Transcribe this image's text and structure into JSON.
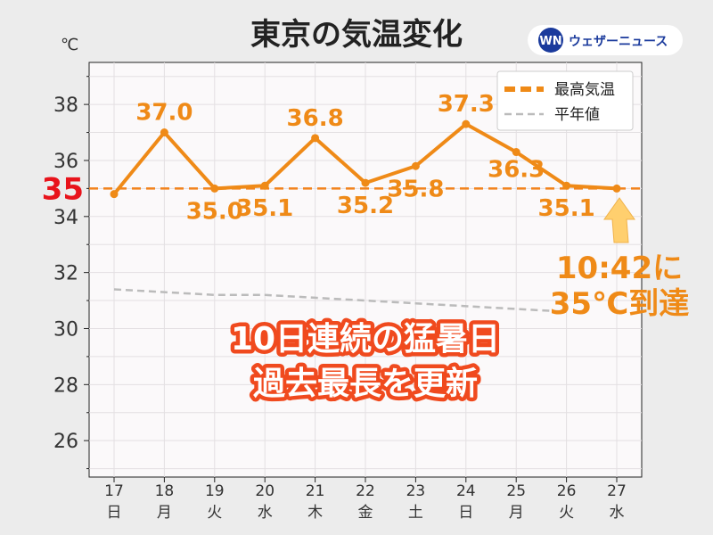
{
  "chart_data": {
    "type": "line",
    "title": "東京の気温変化",
    "yunit": "℃",
    "ylim": [
      24.7,
      39.5
    ],
    "yticks": [
      26,
      28,
      30,
      32,
      34,
      36,
      38
    ],
    "categories": [
      "17",
      "18",
      "19",
      "20",
      "21",
      "22",
      "23",
      "24",
      "25",
      "26",
      "27"
    ],
    "weekdays": [
      "日",
      "月",
      "火",
      "水",
      "木",
      "金",
      "土",
      "日",
      "月",
      "火",
      "水"
    ],
    "category_colors": [
      "#d0202e",
      "#333333",
      "#333333",
      "#333333",
      "#333333",
      "#333333",
      "#2a86d8",
      "#d0202e",
      "#333333",
      "#333333",
      "#333333"
    ],
    "series": [
      {
        "name": "最高気温",
        "color": "#ef8a17",
        "values": [
          34.8,
          37.0,
          35.0,
          35.1,
          36.8,
          35.2,
          35.8,
          37.3,
          36.3,
          35.1,
          35.0
        ],
        "labels": [
          "",
          "37.0",
          "35.0",
          "35.1",
          "36.8",
          "35.2",
          "35.8",
          "37.3",
          "36.3",
          "35.1",
          ""
        ]
      },
      {
        "name": "平年値",
        "color": "#bbbbbb",
        "values": [
          31.4,
          31.3,
          31.2,
          31.2,
          31.1,
          31.0,
          30.9,
          30.8,
          30.7,
          30.6,
          null
        ]
      }
    ],
    "reference_line": {
      "value": 35,
      "label": "35",
      "color": "#f2831c"
    },
    "legend": "top-right",
    "grid": true,
    "annotations": {
      "callout_line1": "10:42に",
      "callout_line2": "35℃到達",
      "banner_line1": "10日連続の猛暑日",
      "banner_line2": "過去最長を更新"
    }
  },
  "brand": {
    "logo_mark": "WN",
    "logo_text": "ウェザーニュース"
  }
}
